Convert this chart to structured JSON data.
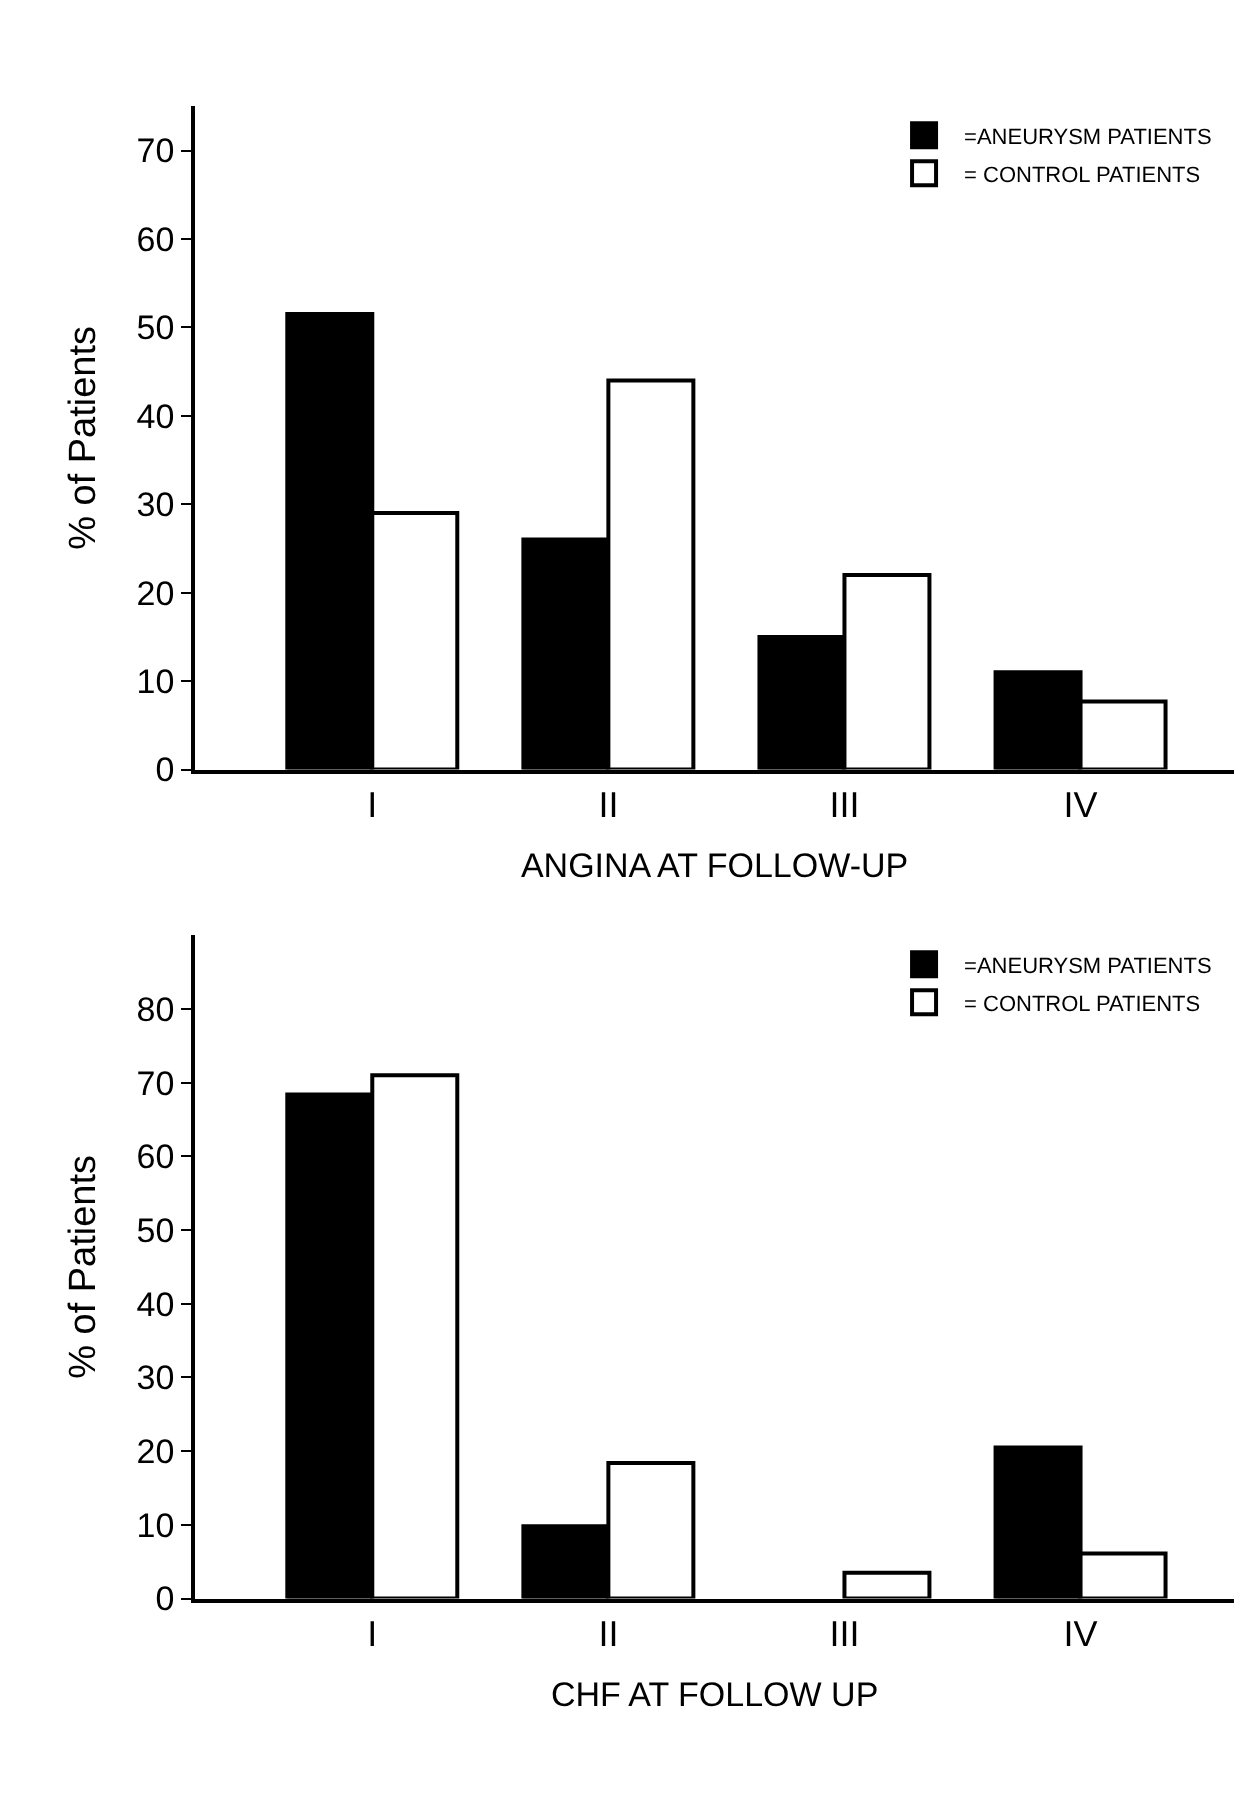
{
  "chart_data": [
    {
      "type": "bar",
      "xlabel": "ANGINA AT FOLLOW-UP",
      "ylabel": "% of Patients",
      "categories": [
        "I",
        "II",
        "III",
        "IV"
      ],
      "series": [
        {
          "name": "=ANEURYSM PATIENTS",
          "color": "#000000",
          "values": [
            51.5,
            26,
            15,
            11
          ]
        },
        {
          "name": "= CONTROL PATIENTS",
          "color": "#ffffff",
          "values": [
            29,
            44,
            22,
            7.7
          ]
        }
      ],
      "ylim": [
        0,
        75
      ],
      "yticks": [
        0,
        10,
        20,
        30,
        40,
        50,
        60,
        70
      ],
      "legend": "top right"
    },
    {
      "type": "bar",
      "xlabel": "CHF AT FOLLOW UP",
      "ylabel": "% of Patients",
      "categories": [
        "I",
        "II",
        "III",
        "IV"
      ],
      "series": [
        {
          "name": "=ANEURYSM PATIENTS",
          "color": "#000000",
          "values": [
            68.4,
            9.8,
            0,
            20.5
          ]
        },
        {
          "name": "= CONTROL PATIENTS",
          "color": "#ffffff",
          "values": [
            71,
            18.4,
            3.5,
            6.1
          ]
        }
      ],
      "ylim": [
        0,
        90
      ],
      "yticks": [
        0,
        10,
        20,
        30,
        40,
        50,
        60,
        70,
        80
      ],
      "legend": "top right"
    }
  ]
}
